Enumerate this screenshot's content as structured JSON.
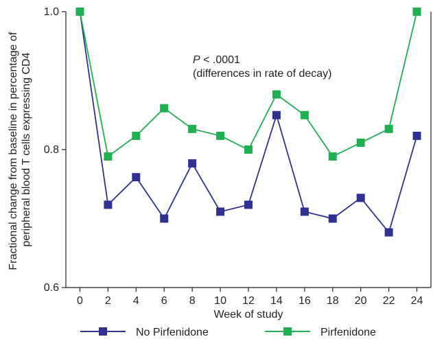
{
  "chart_data": {
    "type": "line",
    "x": [
      0,
      2,
      4,
      6,
      8,
      10,
      12,
      14,
      16,
      18,
      20,
      22,
      24
    ],
    "xticks": [
      "0",
      "2",
      "4",
      "6",
      "8",
      "10",
      "12",
      "14",
      "16",
      "18",
      "20",
      "22",
      "24"
    ],
    "yticks": [
      "0.6",
      "0.8",
      "1.0"
    ],
    "xlabel": "Week of study",
    "ylabel_line1": "Fractional change from baseline in percentage of",
    "ylabel_line2": "peripheral blood T cells expressing CD4",
    "xlim": [
      -1,
      25
    ],
    "ylim": [
      0.6,
      1.0
    ],
    "grid": false,
    "legend_position": "bottom",
    "annotation": {
      "p_symbol": "P",
      "p_value": " < .0001",
      "line2": "(differences in rate of decay)"
    },
    "series": [
      {
        "name": "No Pirfenidone",
        "color": "#2e3192",
        "marker": "square",
        "values": [
          1.0,
          0.72,
          0.76,
          0.7,
          0.78,
          0.71,
          0.72,
          0.85,
          0.71,
          0.7,
          0.73,
          0.68,
          0.82
        ]
      },
      {
        "name": "Pirfenidone",
        "color": "#1fb051",
        "marker": "square",
        "values": [
          1.0,
          0.79,
          0.82,
          0.86,
          0.83,
          0.82,
          0.8,
          0.88,
          0.85,
          0.79,
          0.81,
          0.83,
          1.0
        ]
      }
    ]
  }
}
